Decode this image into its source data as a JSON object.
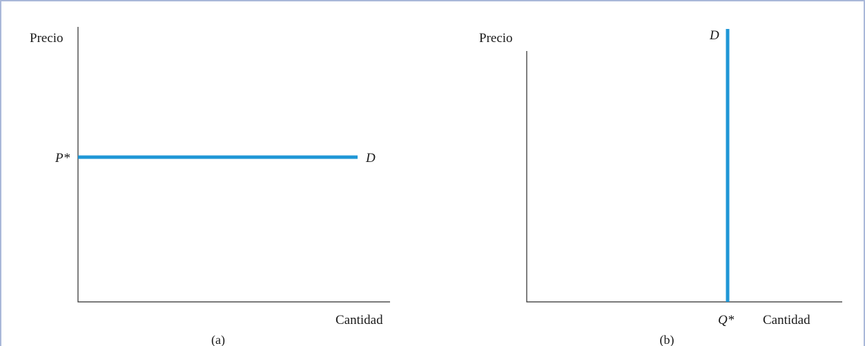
{
  "panels": [
    {
      "caption": "(a)",
      "y_axis_label": "Precio",
      "x_axis_label": "Cantidad",
      "curve_label": "D",
      "curve_orientation": "horizontal",
      "tick_label": "P*",
      "tick_axis": "y"
    },
    {
      "caption": "(b)",
      "y_axis_label": "Precio",
      "x_axis_label": "Cantidad",
      "curve_label": "D",
      "curve_orientation": "vertical",
      "tick_label": "Q*",
      "tick_axis": "x"
    }
  ],
  "colors": {
    "curve": "#1f97d6",
    "axis": "#2a2a2a",
    "frame": "#a9b8d9"
  }
}
